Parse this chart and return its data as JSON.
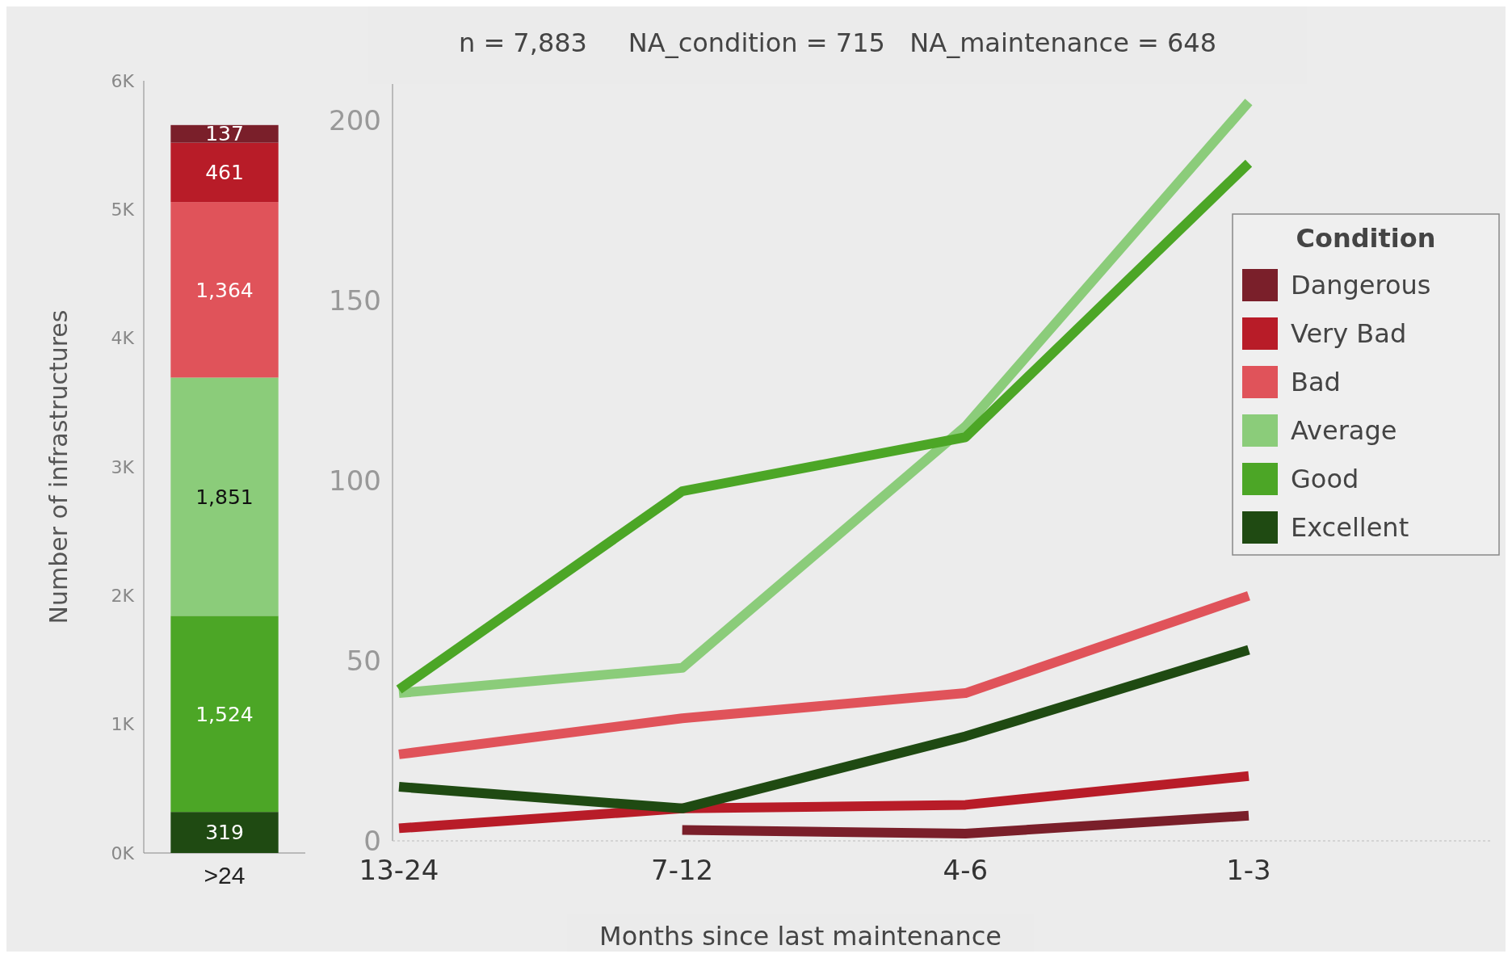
{
  "chart_data": [
    {
      "type": "bar",
      "ylabel": "Number of infrastructures",
      "categories": [
        ">24"
      ],
      "stacked": true,
      "ylim": [
        0,
        6000
      ],
      "yticks": [
        {
          "value": 0,
          "label": "0K"
        },
        {
          "value": 1000,
          "label": "1K"
        },
        {
          "value": 2000,
          "label": "2K"
        },
        {
          "value": 3000,
          "label": "3K"
        },
        {
          "value": 4000,
          "label": "4K"
        },
        {
          "value": 5000,
          "label": "5K"
        },
        {
          "value": 6000,
          "label": "6K"
        }
      ],
      "series": [
        {
          "color": "#1f4a12",
          "values": [
            319
          ],
          "value_labels": [
            "319"
          ]
        },
        {
          "color": "#4ca626",
          "values": [
            1524
          ],
          "value_labels": [
            "1,524"
          ]
        },
        {
          "color": "#8bcc7a",
          "values": [
            1851
          ],
          "value_labels": [
            "1,851"
          ]
        },
        {
          "color": "#e0535a",
          "values": [
            1364
          ],
          "value_labels": [
            "1,364"
          ]
        },
        {
          "color": "#b81c28",
          "values": [
            461
          ],
          "value_labels": [
            "461"
          ]
        },
        {
          "color": "#7a1f2a",
          "values": [
            137
          ],
          "value_labels": [
            "137"
          ]
        }
      ]
    },
    {
      "type": "line",
      "title": "n = 7,883     NA_condition = 715   NA_maintenance = 648",
      "xlabel": "Months since last maintenance",
      "categories": [
        "13-24",
        "7-12",
        "4-6",
        "1-3"
      ],
      "ylim": [
        0,
        210
      ],
      "yticks": [
        0,
        50,
        100,
        150,
        200
      ],
      "legend": "right",
      "legend_title": "Condition",
      "series": [
        {
          "name": "Dangerous",
          "color": "#7a1f2a",
          "values": [
            null,
            3,
            2,
            7
          ]
        },
        {
          "name": "Very Bad",
          "color": "#b81c28",
          "values": [
            3.5,
            9,
            10,
            18
          ]
        },
        {
          "name": "Bad",
          "color": "#e0535a",
          "values": [
            24,
            34,
            41,
            68
          ]
        },
        {
          "name": "Average",
          "color": "#8bcc7a",
          "values": [
            41,
            48,
            115,
            205
          ]
        },
        {
          "name": "Good",
          "color": "#4ca626",
          "values": [
            42,
            97,
            112,
            188
          ]
        },
        {
          "name": "Excellent",
          "color": "#1f4a12",
          "values": [
            15,
            9,
            29,
            53
          ]
        }
      ]
    }
  ]
}
